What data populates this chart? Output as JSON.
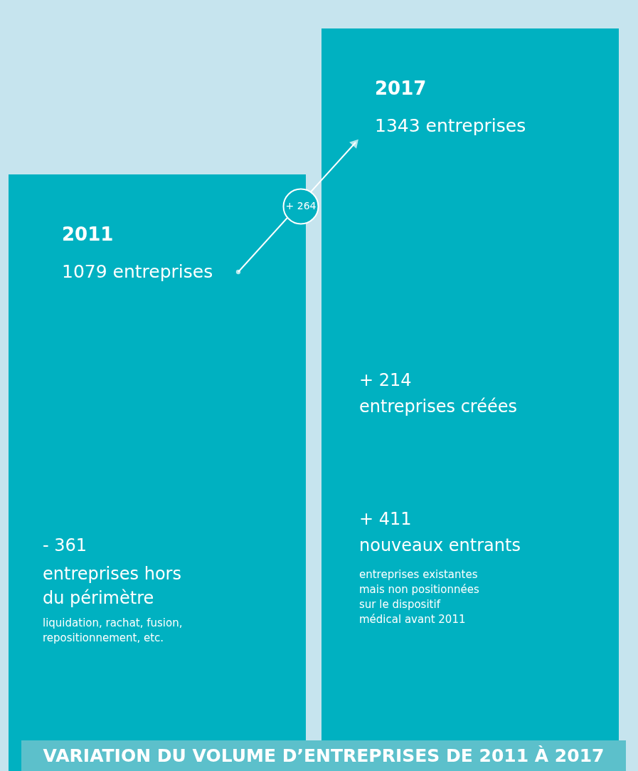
{
  "chart_data": {
    "type": "bar",
    "title": "VARIATION DU VOLUME D’ENTREPRISES DE 2011 À 2017",
    "categories": [
      "2011",
      "2017"
    ],
    "values": [
      1079,
      1343
    ],
    "value_labels": [
      "1079 entreprises",
      "1343 entreprises"
    ],
    "color": "#00b1c1",
    "annotations": [
      "+ 264",
      "- 361",
      "entreprises hors du périmètre",
      "liquidation, rachat, fusion, repositionnement, etc.",
      "+ 214",
      "entreprises créées",
      "+ 411",
      "nouveaux entrants",
      "entreprises existantes mais non positionnées sur le dispositif médical avant 2011"
    ]
  }
}
